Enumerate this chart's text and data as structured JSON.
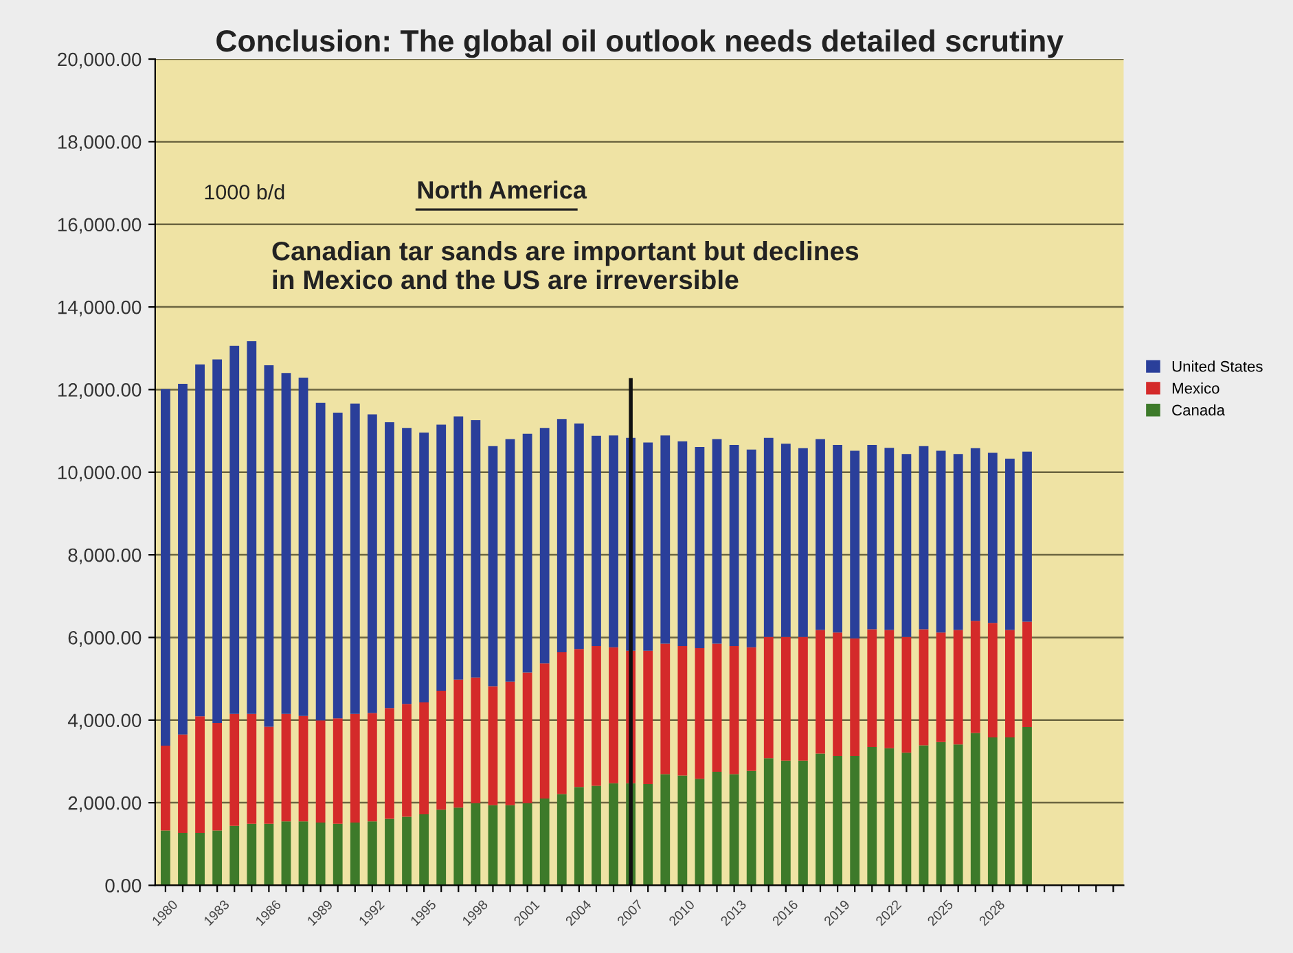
{
  "chart_data": {
    "type": "bar",
    "stacked": true,
    "title": "Conclusion: The global oil outlook needs detailed scrutiny",
    "annotations": [
      "1000 b/d",
      "North America",
      "Canadian tar sands are important but declines\nin Mexico and the US are irreversible"
    ],
    "categories": [
      "1980",
      null,
      null,
      "1983",
      null,
      null,
      "1986",
      null,
      null,
      "1989",
      null,
      null,
      "1992",
      null,
      null,
      "1995",
      null,
      null,
      "1998",
      null,
      null,
      "2001",
      null,
      null,
      "2004",
      null,
      null,
      "2007",
      null,
      null,
      "2010",
      null,
      null,
      "2013",
      null,
      null,
      "2016",
      null,
      null,
      "2019",
      null,
      null,
      "2022",
      null,
      null,
      "2025",
      null,
      null,
      "2028",
      null,
      null,
      null,
      null,
      null,
      null,
      null
    ],
    "series": [
      {
        "name": "Canada",
        "color": "#3d7a2a",
        "values": [
          1330,
          1270,
          1270,
          1330,
          1440,
          1490,
          1490,
          1550,
          1550,
          1520,
          1490,
          1520,
          1550,
          1610,
          1660,
          1720,
          1830,
          1880,
          1990,
          1940,
          1940,
          1990,
          2100,
          2210,
          2380,
          2410,
          2470,
          2470,
          2450,
          2690,
          2660,
          2580,
          2750,
          2690,
          2770,
          3080,
          3020,
          3020,
          3190,
          3130,
          3130,
          3350,
          3320,
          3210,
          3390,
          3470,
          3410,
          3690,
          3580,
          3580,
          3830,
          null,
          null,
          null,
          null,
          null
        ]
      },
      {
        "name": "Mexico",
        "color": "#d42a2a",
        "values": [
          2050,
          2380,
          2820,
          2600,
          2710,
          2660,
          2350,
          2600,
          2550,
          2470,
          2550,
          2630,
          2620,
          2680,
          2730,
          2710,
          2880,
          3100,
          3040,
          2880,
          2990,
          3160,
          3270,
          3430,
          3340,
          3380,
          3290,
          3210,
          3230,
          3160,
          3130,
          3160,
          3100,
          3100,
          2990,
          2930,
          2990,
          2990,
          2990,
          2990,
          2850,
          2850,
          2860,
          2800,
          2810,
          2650,
          2770,
          2710,
          2770,
          2600,
          2550,
          null,
          null,
          null,
          null,
          null
        ]
      },
      {
        "name": "United States",
        "color": "#2a3f9a",
        "values": [
          8630,
          8490,
          8520,
          8800,
          8910,
          9020,
          8750,
          8250,
          8190,
          7690,
          7400,
          7510,
          7230,
          6920,
          6680,
          6530,
          6440,
          6370,
          6230,
          5810,
          5870,
          5780,
          5700,
          5650,
          5460,
          5090,
          5130,
          5150,
          5040,
          5040,
          4960,
          4870,
          4950,
          4870,
          4790,
          4820,
          4680,
          4570,
          4620,
          4540,
          4540,
          4460,
          4410,
          4430,
          4430,
          4400,
          4260,
          4180,
          4120,
          4150,
          4120,
          null,
          null,
          null,
          null,
          null
        ]
      }
    ],
    "ylim": [
      0,
      20000
    ],
    "yticks": [
      {
        "value": 0,
        "label": "0.00"
      },
      {
        "value": 2000,
        "label": "2,000.00"
      },
      {
        "value": 4000,
        "label": "4,000.00"
      },
      {
        "value": 6000,
        "label": "6,000.00"
      },
      {
        "value": 8000,
        "label": "8,000.00"
      },
      {
        "value": 10000,
        "label": "10,000.00"
      },
      {
        "value": 12000,
        "label": "12,000.00"
      },
      {
        "value": 14000,
        "label": "14,000.00"
      },
      {
        "value": 16000,
        "label": "16,000.00"
      },
      {
        "value": 18000,
        "label": "18,000.00"
      },
      {
        "value": 20000,
        "label": "20,000.00"
      }
    ],
    "grid": "y",
    "legend": "right",
    "ref_lines": [
      {
        "axis": "x",
        "value": "2007",
        "color": "#111111"
      }
    ]
  }
}
